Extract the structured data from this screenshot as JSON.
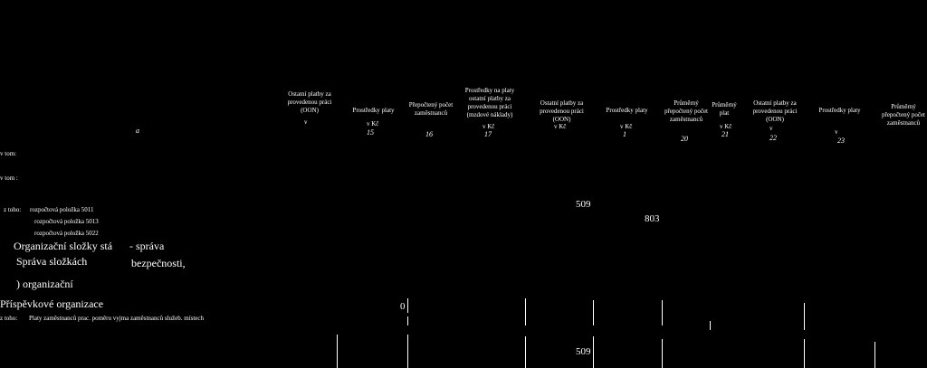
{
  "header": {
    "marker": "a",
    "columns": [
      {
        "label": "Ostatní platby za provedenou práci (OON)",
        "unit": "v"
      },
      {
        "label": "Prostředky platy",
        "unit": "v Kč",
        "number": "15"
      },
      {
        "label": "Přepočtený počet zaměstnanců",
        "number": "16"
      },
      {
        "label": "Prostředky na platy ostatní platby za provedenou práci (mzdové náklady)",
        "unit": "v Kč",
        "number": "17"
      },
      {
        "label": "Ostatní platby za provedenou práci (OON)",
        "unit": "v Kč"
      },
      {
        "label": "Prostředky platy",
        "unit": "v Kč",
        "number": "1"
      },
      {
        "label": "Průměrný přepočtený počet zaměstnanců",
        "number": "20"
      },
      {
        "label": "Průměrný plat",
        "unit": "v Kč",
        "number": "21"
      },
      {
        "label": "Ostatní platby za provedenou práci (OON)",
        "unit": "v",
        "number": "22"
      },
      {
        "label": "Prostředky platy",
        "unit": "v",
        "number": "23"
      },
      {
        "label": "Průměrný přepočtený počet zaměstnanců"
      }
    ]
  },
  "rows": [
    {
      "label": "v tom:"
    },
    {
      "label": "v tom :"
    },
    {
      "prefix": "z toho:",
      "label": "rozpočtová položka 5011",
      "value": "509"
    },
    {
      "label": "rozpočtová položka 5013",
      "value": "803"
    },
    {
      "label": "rozpočtová položka 5022"
    },
    {
      "label": "Organizační složky stá",
      "extra": "- správa"
    },
    {
      "label": "Správa složkách",
      "extra": "bezpečnosti,"
    },
    {
      "label": ") organizační"
    },
    {
      "label": "Příspěvkové organizace",
      "value": "0"
    },
    {
      "prefix": "z toho:",
      "label": "Platy zaměstnanců prac. poměru vyjma zaměstnanců služeb. místech"
    }
  ],
  "total": {
    "value": "509"
  }
}
